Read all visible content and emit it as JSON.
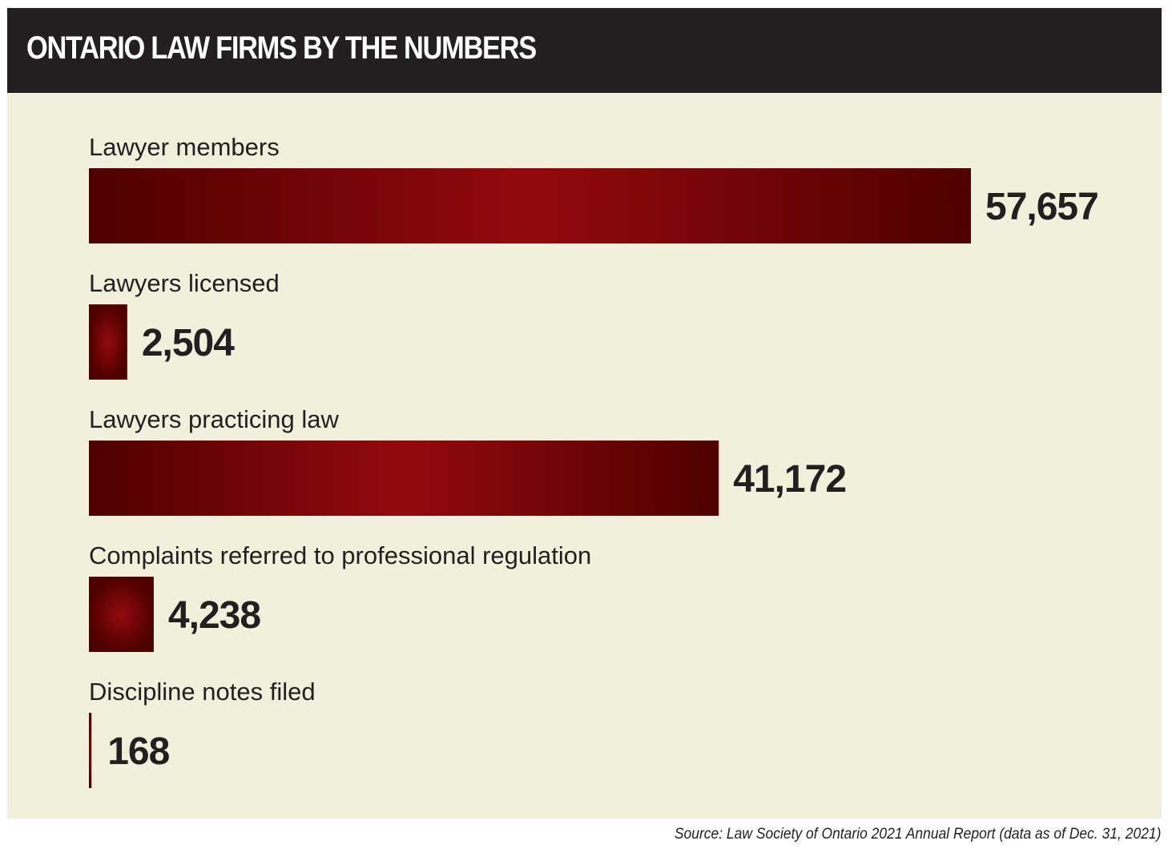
{
  "colors": {
    "header_bg": "#231f20",
    "panel_bg": "#f2efdc",
    "bar_dark": "#4f0000",
    "bar_light": "#930a0e",
    "text": "#231f20"
  },
  "chart_data": {
    "type": "bar",
    "orientation": "horizontal",
    "title": "ONTARIO LAW FIRMS BY THE NUMBERS",
    "categories": [
      "Lawyer members",
      "Lawyers licensed",
      "Lawyers practicing law",
      "Complaints referred to professional regulation",
      "Discipline notes filed"
    ],
    "values": [
      57657,
      2504,
      41172,
      4238,
      168
    ],
    "value_labels": [
      "57,657",
      "2,504",
      "41,172",
      "4,238",
      "168"
    ],
    "grid": false
  },
  "source": "Source: Law Society of Ontario 2021 Annual Report (data as of Dec. 31, 2021)"
}
